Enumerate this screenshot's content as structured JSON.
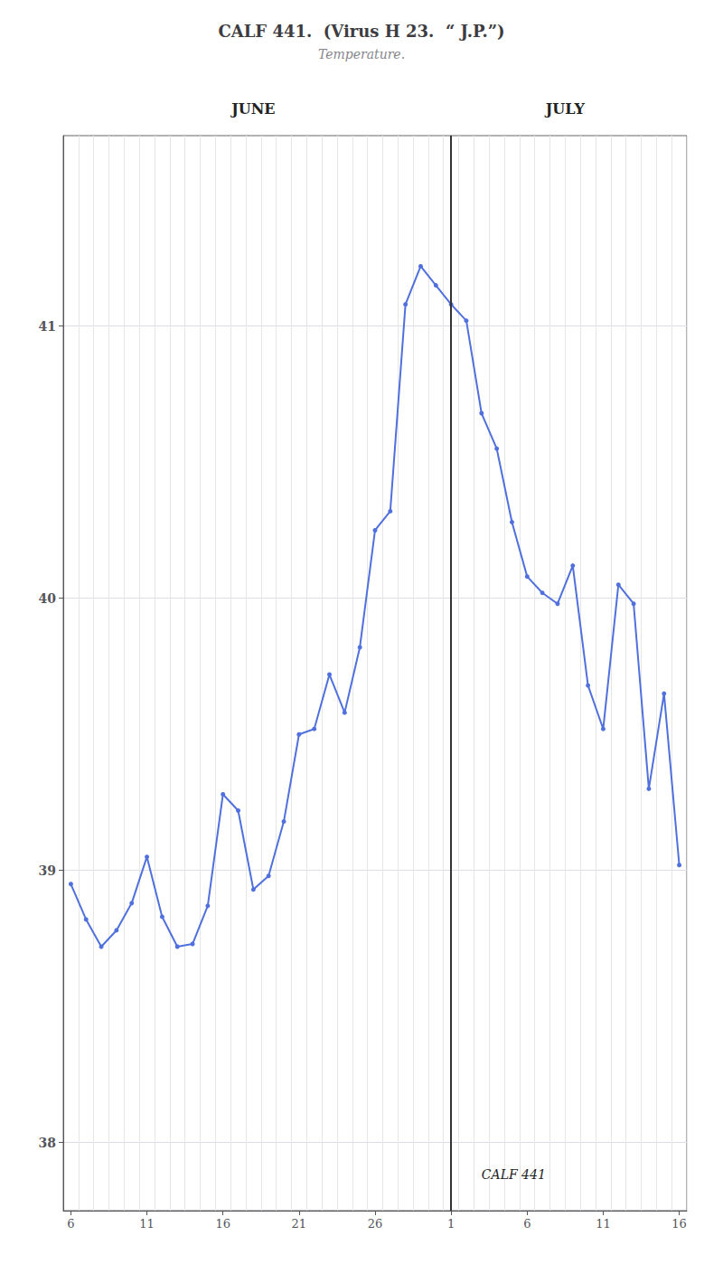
{
  "chart_data": {
    "type": "line",
    "title": "CALF 441.  (Virus H 23.  “ J.P.”)",
    "subtitle": "Temperature.",
    "annotations": [
      "JUNE",
      "JULY",
      "CALF 441"
    ],
    "categories": [
      "6",
      null,
      null,
      null,
      null,
      "11",
      null,
      null,
      null,
      null,
      "16",
      null,
      null,
      null,
      null,
      "21",
      null,
      null,
      null,
      null,
      "26",
      null,
      null,
      null,
      null,
      "1",
      null,
      null,
      null,
      null,
      "6",
      null,
      null,
      null,
      null,
      "11",
      null,
      null,
      null,
      null,
      "16"
    ],
    "values": [
      38.95,
      38.82,
      38.72,
      38.78,
      38.88,
      39.05,
      38.83,
      38.72,
      38.73,
      38.87,
      39.28,
      39.22,
      38.93,
      38.98,
      39.18,
      39.5,
      39.52,
      39.72,
      39.58,
      39.82,
      40.25,
      40.32,
      41.08,
      41.22,
      41.15,
      41.08,
      41.02,
      40.68,
      40.55,
      40.28,
      40.08,
      40.02,
      39.98,
      40.12,
      39.68,
      39.52,
      40.05,
      39.98,
      39.3,
      39.65,
      39.02
    ],
    "ylim": [
      37.75,
      41.7
    ],
    "yticks": [
      38,
      39,
      40,
      41
    ],
    "grid": true,
    "marker": "circle"
  }
}
